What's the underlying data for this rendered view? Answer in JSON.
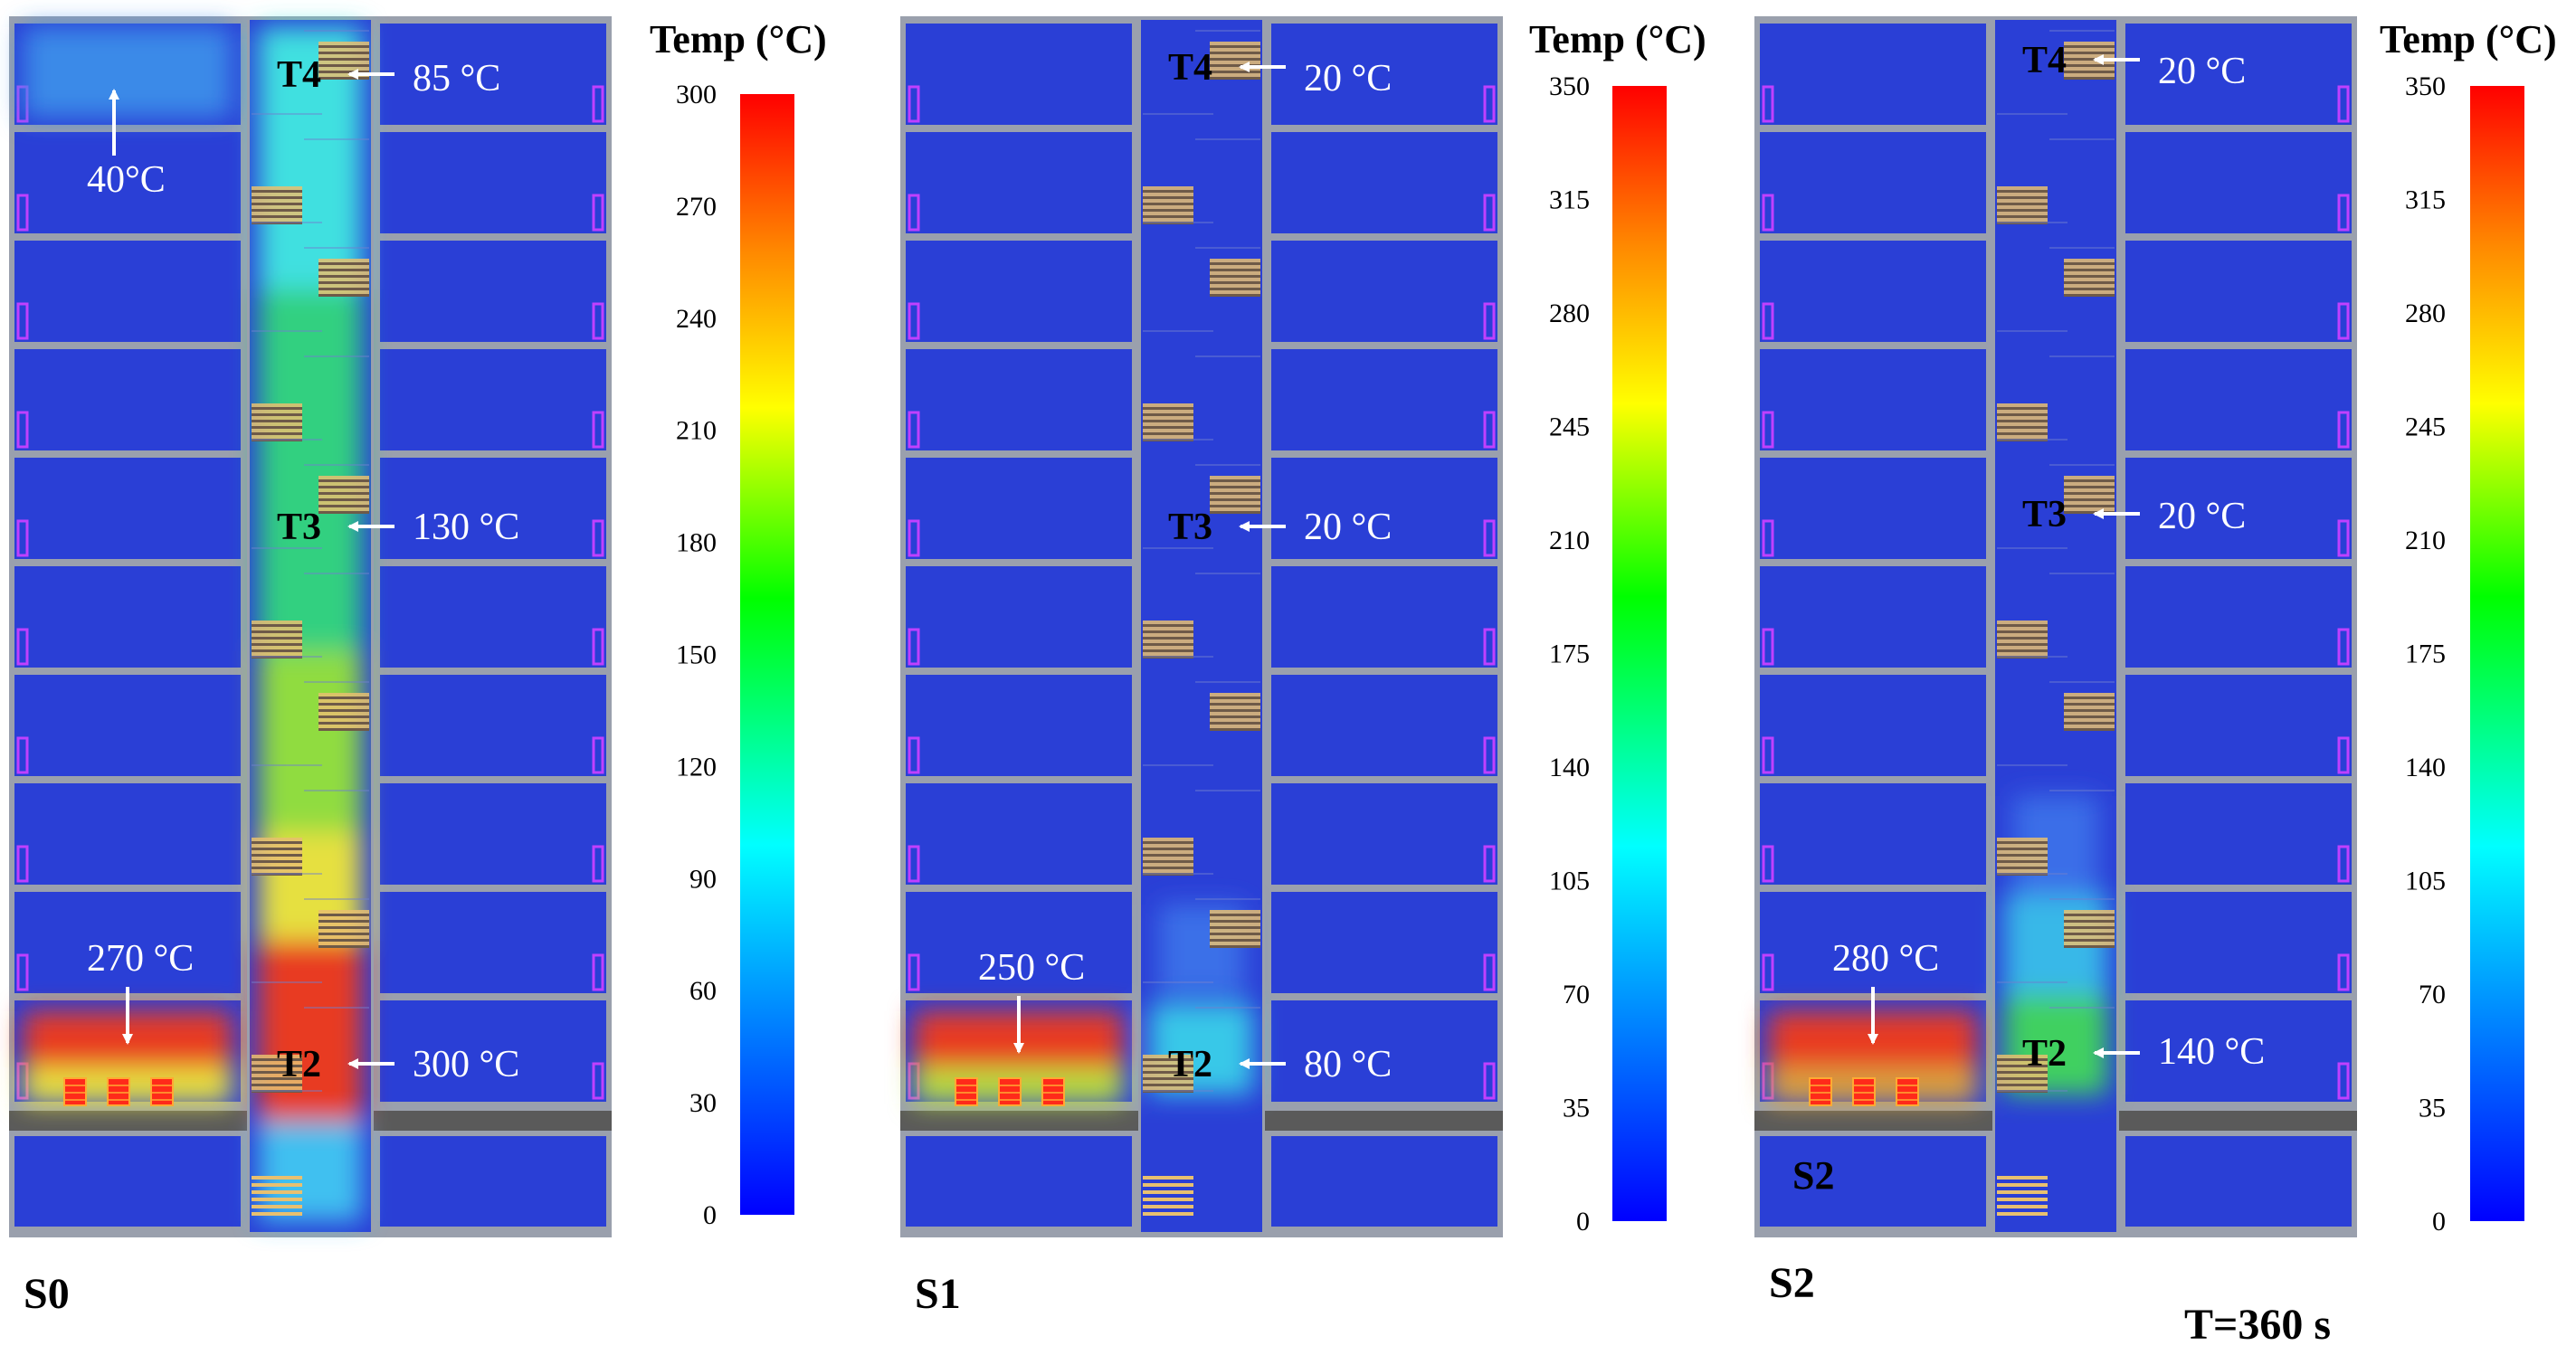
{
  "title_note": "T=360 s",
  "panels": [
    {
      "id": "S0",
      "label": "S0",
      "colorbar": {
        "title": "Temp (°C)",
        "title_main": "Temp (",
        "title_unit": "°C)",
        "ticks": [
          "300",
          "270",
          "240",
          "210",
          "180",
          "150",
          "120",
          "90",
          "60",
          "30",
          "0"
        ],
        "vmin": 0,
        "vmax": 300
      },
      "annotations": {
        "T4": {
          "tag": "T4",
          "value": "85 °C",
          "value_num": "85 ",
          "value_unit": "°C",
          "temp": 85
        },
        "T3": {
          "tag": "T3",
          "value": "130 °C",
          "value_num": "130 ",
          "value_unit": "°C",
          "temp": 130
        },
        "T2": {
          "tag": "T2",
          "value": "300 °C",
          "value_num": "300 ",
          "value_unit": "°C",
          "temp": 300
        },
        "room_top": {
          "value": "40°C",
          "value_num": "40",
          "value_unit": "°C",
          "temp": 40
        },
        "room_fire": {
          "value": "270 °C",
          "value_num": "270 ",
          "value_unit": "°C",
          "temp": 270
        }
      }
    },
    {
      "id": "S1",
      "label": "S1",
      "colorbar": {
        "title": "Temp (°C)",
        "title_main": "Temp (",
        "title_unit": "°C)",
        "ticks": [
          "350",
          "315",
          "280",
          "245",
          "210",
          "175",
          "140",
          "105",
          "70",
          "35",
          "0"
        ],
        "vmin": 0,
        "vmax": 350
      },
      "annotations": {
        "T4": {
          "tag": "T4",
          "value": "20 °C",
          "value_num": "20 ",
          "value_unit": "°C",
          "temp": 20
        },
        "T3": {
          "tag": "T3",
          "value": "20 °C",
          "value_num": "20 ",
          "value_unit": "°C",
          "temp": 20
        },
        "T2": {
          "tag": "T2",
          "value": "80 °C",
          "value_num": "80 ",
          "value_unit": "°C",
          "temp": 80
        },
        "room_fire": {
          "value": "250 °C",
          "value_num": "250 ",
          "value_unit": "°C",
          "temp": 250
        }
      }
    },
    {
      "id": "S2",
      "label": "S2",
      "inset_label": "S2",
      "colorbar": {
        "title": "Temp (°C)",
        "title_main": "Temp (",
        "title_unit": "°C)",
        "ticks": [
          "350",
          "315",
          "280",
          "245",
          "210",
          "175",
          "140",
          "105",
          "70",
          "35",
          "0"
        ],
        "vmin": 0,
        "vmax": 350
      },
      "annotations": {
        "T4": {
          "tag": "T4",
          "value": "20 °C",
          "value_num": "20 ",
          "value_unit": "°C",
          "temp": 20
        },
        "T3": {
          "tag": "T3",
          "value": "20 °C",
          "value_num": "20 ",
          "value_unit": "°C",
          "temp": 20
        },
        "T2": {
          "tag": "T2",
          "value": "140 °C",
          "value_num": "140 ",
          "value_unit": "°C",
          "temp": 140
        },
        "room_fire": {
          "value": "280 °C",
          "value_num": "280 ",
          "value_unit": "°C",
          "temp": 280
        }
      }
    }
  ],
  "colors": {
    "room_blue": "#2a3fd6",
    "wall_grey": "#9aa0ad",
    "slab_dark": "#5a5a5a",
    "stair_brown": "#6e5a48",
    "door_magenta": "#c040ff",
    "fire_red": "#e83a24",
    "fire_orange": "#f07030",
    "hot_yellow": "#e6e040",
    "warm_green": "#40d040",
    "cool_cyan": "#40e0e0",
    "source_red": "#ff2a1a"
  }
}
